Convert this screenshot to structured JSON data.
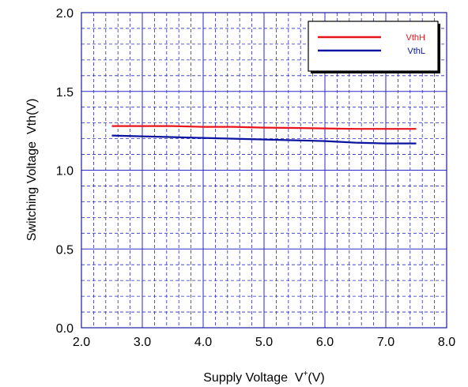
{
  "chart_data": {
    "type": "line",
    "xlabel": "Supply Voltage  V",
    "xlabel_superscript": "+",
    "xlabel_unit": "(V)",
    "ylabel": "Switching Voltage  Vth(V)",
    "xlim": [
      2.0,
      8.0
    ],
    "ylim": [
      0.0,
      2.0
    ],
    "x_ticks": [
      "2.0",
      "3.0",
      "4.0",
      "5.0",
      "6.0",
      "7.0",
      "8.0"
    ],
    "y_ticks": [
      "0.0",
      "0.5",
      "1.0",
      "1.5",
      "2.0"
    ],
    "grid": "major solid, minor dashed",
    "legend_position": "top-right",
    "series": [
      {
        "name": "VthH",
        "color": "#e8141b",
        "points": [
          [
            2.5,
            1.28
          ],
          [
            3.0,
            1.28
          ],
          [
            3.5,
            1.28
          ],
          [
            4.0,
            1.275
          ],
          [
            4.5,
            1.275
          ],
          [
            5.0,
            1.27
          ],
          [
            5.5,
            1.268
          ],
          [
            6.0,
            1.265
          ],
          [
            6.5,
            1.262
          ],
          [
            7.0,
            1.262
          ],
          [
            7.5,
            1.262
          ]
        ]
      },
      {
        "name": "VthL",
        "color": "#0a14a0",
        "points": [
          [
            2.5,
            1.22
          ],
          [
            3.0,
            1.215
          ],
          [
            3.5,
            1.21
          ],
          [
            4.0,
            1.205
          ],
          [
            4.5,
            1.2
          ],
          [
            5.0,
            1.195
          ],
          [
            5.5,
            1.19
          ],
          [
            6.0,
            1.185
          ],
          [
            6.5,
            1.175
          ],
          [
            7.0,
            1.17
          ],
          [
            7.5,
            1.17
          ]
        ]
      }
    ]
  }
}
